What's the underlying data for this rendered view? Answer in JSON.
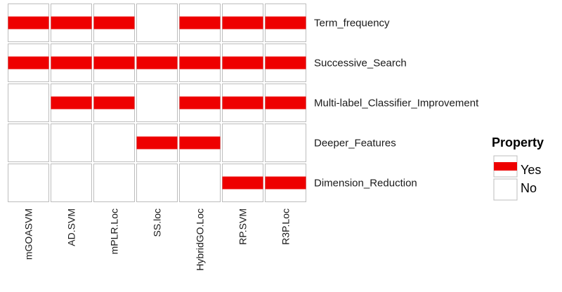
{
  "chart_data": {
    "type": "heatmap",
    "title": "",
    "columns": [
      "mGOASVM",
      "AD.SVM",
      "mPLR.Loc",
      "SS.loc",
      "HybridGO.Loc",
      "RP.SVM",
      "R3P.Loc"
    ],
    "rows": [
      "Term_frequency",
      "Successive_Search",
      "Multi-label_Classifier_Improvement",
      "Deeper_Features",
      "Dimension_Reduction"
    ],
    "values": [
      [
        "Yes",
        "Yes",
        "Yes",
        "No",
        "Yes",
        "Yes",
        "Yes"
      ],
      [
        "Yes",
        "Yes",
        "Yes",
        "Yes",
        "Yes",
        "Yes",
        "Yes"
      ],
      [
        "No",
        "Yes",
        "Yes",
        "No",
        "Yes",
        "Yes",
        "Yes"
      ],
      [
        "No",
        "No",
        "No",
        "Yes",
        "Yes",
        "No",
        "No"
      ],
      [
        "No",
        "No",
        "No",
        "No",
        "No",
        "Yes",
        "Yes"
      ]
    ],
    "legend": {
      "title": "Property",
      "position": "right",
      "entries": [
        {
          "label": "Yes",
          "color": "#ee0000"
        },
        {
          "label": "No",
          "color": "#ffffff"
        }
      ]
    },
    "colors": {
      "yes": "#ee0000",
      "no": "#ffffff",
      "border": "#bdbdbd"
    }
  }
}
